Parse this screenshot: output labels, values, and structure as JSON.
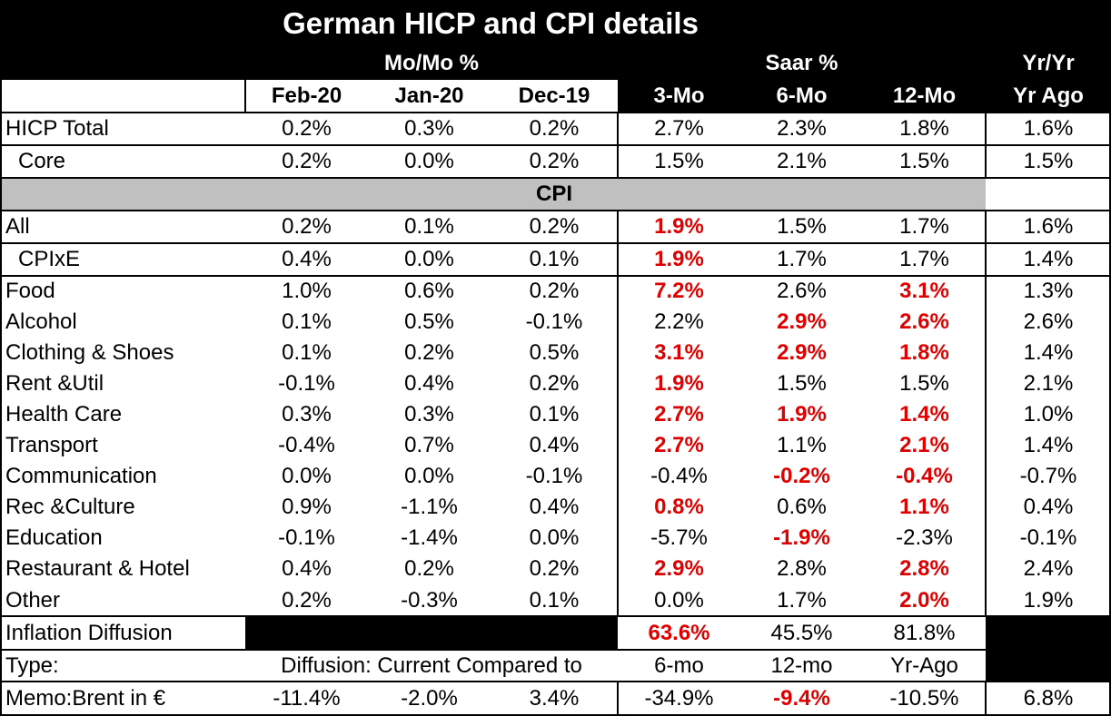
{
  "title": "German HICP and CPI details",
  "headers": {
    "momo": "Mo/Mo %",
    "saar": "Saar %",
    "yryr": "Yr/Yr",
    "cols": [
      "Feb-20",
      "Jan-20",
      "Dec-19",
      "3-Mo",
      "6-Mo",
      "12-Mo",
      "Yr Ago"
    ]
  },
  "cpi_section": "CPI",
  "rows": [
    {
      "label": "HICP Total",
      "values": [
        "0.2%",
        "0.3%",
        "0.2%",
        "2.7%",
        "2.3%",
        "1.8%",
        "1.6%"
      ],
      "red": []
    },
    {
      "label": "Core",
      "indent": true,
      "values": [
        "0.2%",
        "0.0%",
        "0.2%",
        "1.5%",
        "2.1%",
        "1.5%",
        "1.5%"
      ],
      "red": []
    },
    {
      "label": "All",
      "values": [
        "0.2%",
        "0.1%",
        "0.2%",
        "1.9%",
        "1.5%",
        "1.7%",
        "1.6%"
      ],
      "red": [
        3
      ]
    },
    {
      "label": "CPIxE",
      "indent": true,
      "values": [
        "0.4%",
        "0.0%",
        "0.1%",
        "1.9%",
        "1.7%",
        "1.7%",
        "1.4%"
      ],
      "red": [
        3
      ]
    },
    {
      "label": "Food",
      "values": [
        "1.0%",
        "0.6%",
        "0.2%",
        "7.2%",
        "2.6%",
        "3.1%",
        "1.3%"
      ],
      "red": [
        3,
        5
      ]
    },
    {
      "label": "Alcohol",
      "values": [
        "0.1%",
        "0.5%",
        "-0.1%",
        "2.2%",
        "2.9%",
        "2.6%",
        "2.6%"
      ],
      "red": [
        4,
        5
      ]
    },
    {
      "label": "Clothing & Shoes",
      "values": [
        "0.1%",
        "0.2%",
        "0.5%",
        "3.1%",
        "2.9%",
        "1.8%",
        "1.4%"
      ],
      "red": [
        3,
        4,
        5
      ]
    },
    {
      "label": "Rent &Util",
      "values": [
        "-0.1%",
        "0.4%",
        "0.2%",
        "1.9%",
        "1.5%",
        "1.5%",
        "2.1%"
      ],
      "red": [
        3
      ]
    },
    {
      "label": "Health Care",
      "values": [
        "0.3%",
        "0.3%",
        "0.1%",
        "2.7%",
        "1.9%",
        "1.4%",
        "1.0%"
      ],
      "red": [
        3,
        4,
        5
      ]
    },
    {
      "label": "Transport",
      "values": [
        "-0.4%",
        "0.7%",
        "0.4%",
        "2.7%",
        "1.1%",
        "2.1%",
        "1.4%"
      ],
      "red": [
        3,
        5
      ]
    },
    {
      "label": "Communication",
      "values": [
        "0.0%",
        "0.0%",
        "-0.1%",
        "-0.4%",
        "-0.2%",
        "-0.4%",
        "-0.7%"
      ],
      "red": [
        4,
        5
      ]
    },
    {
      "label": "Rec &Culture",
      "values": [
        "0.9%",
        "-1.1%",
        "0.4%",
        "0.8%",
        "0.6%",
        "1.1%",
        "0.4%"
      ],
      "red": [
        3,
        5
      ]
    },
    {
      "label": "Education",
      "values": [
        "-0.1%",
        "-1.4%",
        "0.0%",
        "-5.7%",
        "-1.9%",
        "-2.3%",
        "-0.1%"
      ],
      "red": [
        4
      ]
    },
    {
      "label": "Restaurant & Hotel",
      "values": [
        "0.4%",
        "0.2%",
        "0.2%",
        "2.9%",
        "2.8%",
        "2.8%",
        "2.4%"
      ],
      "red": [
        3,
        5
      ]
    },
    {
      "label": "Other",
      "values": [
        "0.2%",
        "-0.3%",
        "0.1%",
        "0.0%",
        "1.7%",
        "2.0%",
        "1.9%"
      ],
      "red": [
        5
      ]
    }
  ],
  "diffusion": {
    "label": "Inflation Diffusion",
    "values": [
      "63.6%",
      "45.5%",
      "81.8%"
    ],
    "red": [
      0
    ]
  },
  "type_row": {
    "label": "Type:",
    "text": "Diffusion: Current Compared to",
    "values": [
      "6-mo",
      "12-mo",
      "Yr-Ago"
    ]
  },
  "memo": {
    "label": "Memo:Brent in €",
    "values": [
      "-11.4%",
      "-2.0%",
      "3.4%",
      "-34.9%",
      "-9.4%",
      "-10.5%",
      "6.8%"
    ],
    "red": [
      4
    ]
  },
  "colors": {
    "red": "#e00000",
    "black": "#000000",
    "gray": "#c0c0c0"
  }
}
